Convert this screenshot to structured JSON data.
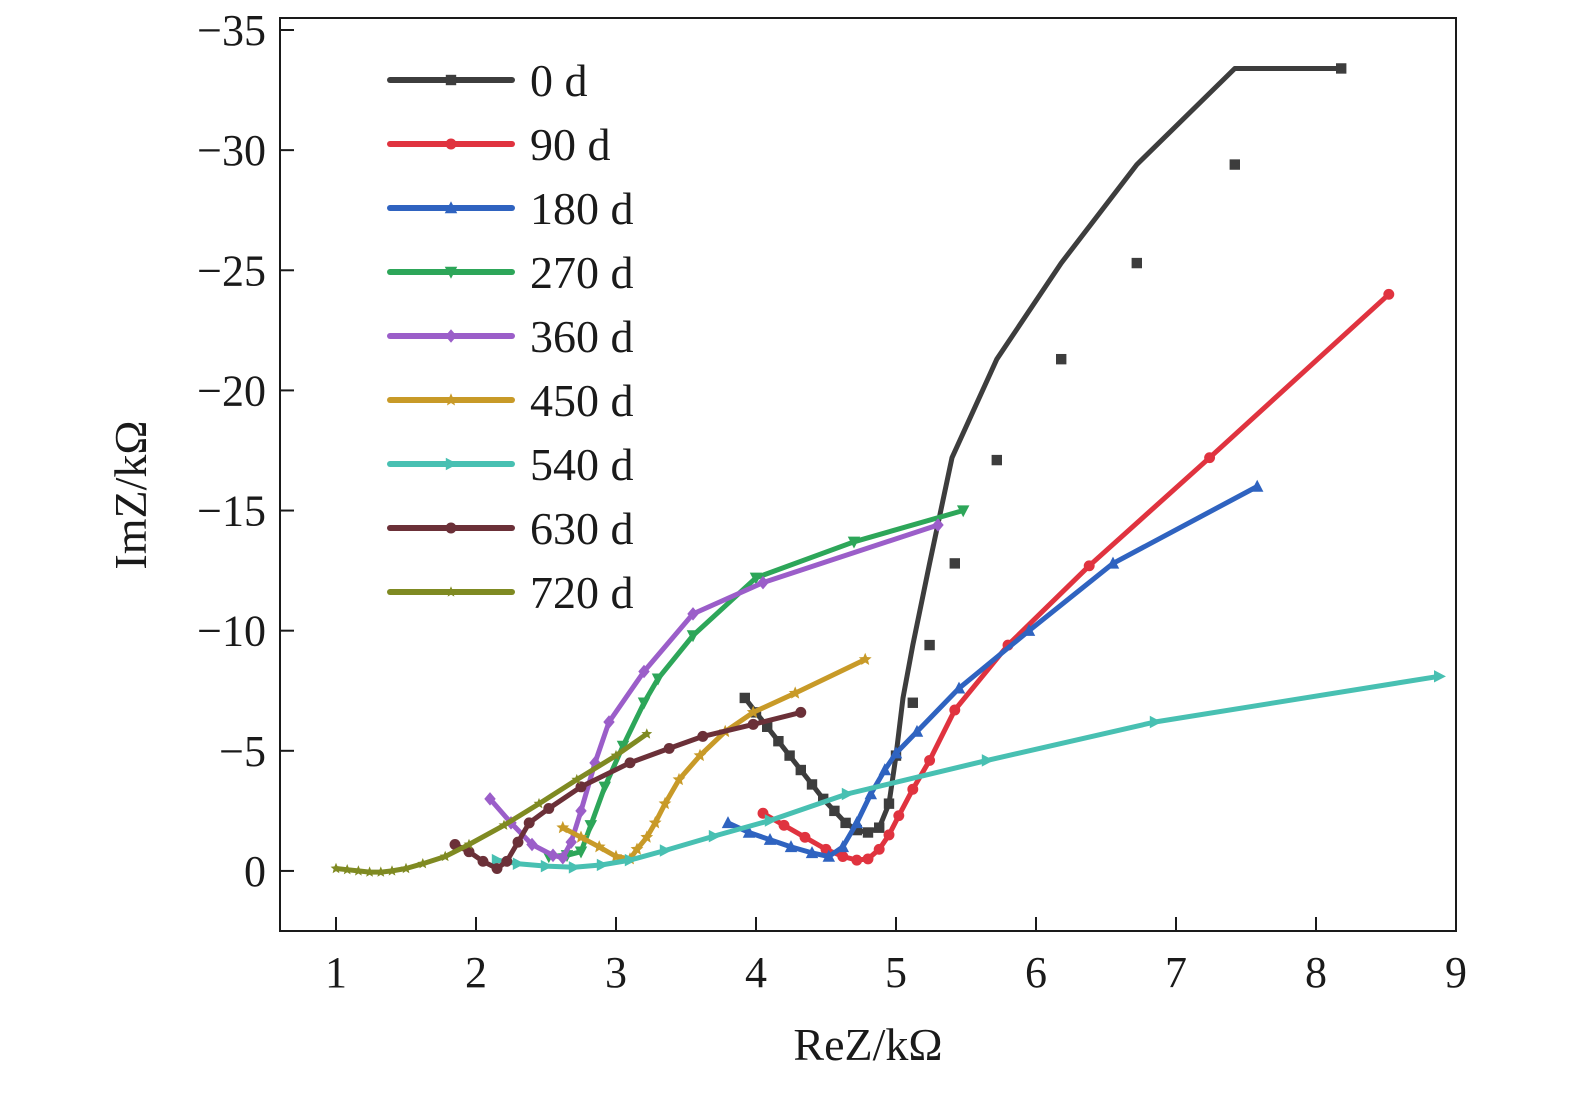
{
  "chart_data": {
    "type": "line",
    "title": "",
    "xlabel": "ReZ/kΩ",
    "ylabel": "ImZ/kΩ",
    "xlim": [
      0.6,
      9
    ],
    "ylim": [
      2.5,
      -35.5
    ],
    "x_ticks": [
      1,
      2,
      3,
      4,
      5,
      6,
      7,
      8,
      9
    ],
    "x_tick_labels": [
      "1",
      "2",
      "3",
      "4",
      "5",
      "6",
      "7",
      "8",
      "9"
    ],
    "y_ticks": [
      0,
      -5,
      -10,
      -15,
      -20,
      -25,
      -30,
      -35
    ],
    "y_tick_labels": [
      "0",
      "−5",
      "−10",
      "−15",
      "−20",
      "−25",
      "−30",
      "−35"
    ],
    "legend_position": "top-left",
    "series": [
      {
        "name": "0 d",
        "color": "#3d3d3d",
        "marker": "square",
        "x": [
          3.92,
          4.0,
          4.08,
          4.16,
          4.24,
          4.32,
          4.4,
          4.48,
          4.56,
          4.64,
          4.72,
          4.8,
          4.88,
          4.95,
          5.0,
          5.05,
          5.12,
          5.24,
          5.4,
          5.72,
          6.18,
          6.72,
          7.42,
          8.18
        ],
        "y": [
          -7.2,
          -6.6,
          -6.0,
          -5.4,
          -4.8,
          -4.2,
          -3.6,
          -3.0,
          -2.5,
          -2.0,
          -1.7,
          -1.6,
          -1.8,
          -2.8,
          -4.8,
          -7.2,
          -9.4,
          -12.8,
          -17.2,
          -21.3,
          -25.3,
          -29.4,
          -33.4,
          -33.4
        ],
        "mx": [
          3.92,
          4.0,
          4.08,
          4.16,
          4.24,
          4.32,
          4.4,
          4.48,
          4.56,
          4.64,
          4.72,
          4.8,
          4.88,
          4.95,
          5.0,
          5.12,
          5.24,
          5.42,
          5.72,
          6.18,
          6.72,
          7.42,
          8.18
        ],
        "my": [
          -7.2,
          -6.6,
          -6.0,
          -5.4,
          -4.8,
          -4.2,
          -3.6,
          -3.0,
          -2.5,
          -2.0,
          -1.7,
          -1.6,
          -1.8,
          -2.8,
          -4.8,
          -7.0,
          -9.4,
          -12.8,
          -17.1,
          -21.3,
          -25.3,
          -29.4,
          -33.4
        ]
      },
      {
        "name": "90 d",
        "color": "#e0333f",
        "marker": "circle",
        "x": [
          4.05,
          4.2,
          4.35,
          4.5,
          4.62,
          4.72,
          4.8,
          4.88,
          4.95,
          5.02,
          5.12,
          5.24,
          5.42,
          5.8,
          6.38,
          7.24,
          8.52
        ],
        "y": [
          -2.4,
          -1.9,
          -1.4,
          -0.9,
          -0.6,
          -0.45,
          -0.5,
          -0.9,
          -1.5,
          -2.3,
          -3.4,
          -4.6,
          -6.7,
          -9.4,
          -12.7,
          -17.2,
          -24.0
        ]
      },
      {
        "name": "180 d",
        "color": "#2f63c0",
        "marker": "triangle-up",
        "x": [
          3.8,
          3.95,
          4.1,
          4.25,
          4.4,
          4.52,
          4.62,
          4.72,
          4.82,
          4.92,
          5.0,
          5.15,
          5.45,
          5.95,
          6.55,
          7.58
        ],
        "y": [
          -2.0,
          -1.6,
          -1.3,
          -1.0,
          -0.75,
          -0.6,
          -1.0,
          -2.0,
          -3.2,
          -4.2,
          -4.9,
          -5.8,
          -7.6,
          -10.0,
          -12.8,
          -16.0
        ]
      },
      {
        "name": "270 d",
        "color": "#2da659",
        "marker": "triangle-down",
        "x": [
          2.52,
          2.65,
          2.75,
          2.82,
          2.92,
          3.05,
          3.2,
          3.3,
          3.55,
          4.0,
          4.7,
          5.48
        ],
        "y": [
          -0.6,
          -0.65,
          -0.8,
          -1.9,
          -3.5,
          -5.2,
          -7.0,
          -8.0,
          -9.8,
          -12.2,
          -13.7,
          -15.0
        ]
      },
      {
        "name": "360 d",
        "color": "#9b5ec9",
        "marker": "diamond",
        "x": [
          2.1,
          2.25,
          2.4,
          2.55,
          2.62,
          2.68,
          2.75,
          2.85,
          2.95,
          3.2,
          3.55,
          4.05,
          5.3
        ],
        "y": [
          -3.0,
          -2.0,
          -1.1,
          -0.65,
          -0.55,
          -1.2,
          -2.5,
          -4.5,
          -6.2,
          -8.3,
          -10.7,
          -12.0,
          -14.4
        ]
      },
      {
        "name": "450 d",
        "color": "#c89a28",
        "marker": "star",
        "x": [
          2.62,
          2.75,
          2.88,
          3.0,
          3.1,
          3.15,
          3.22,
          3.28,
          3.35,
          3.45,
          3.6,
          3.78,
          3.98,
          4.28,
          4.78
        ],
        "y": [
          -1.8,
          -1.4,
          -1.0,
          -0.6,
          -0.5,
          -0.9,
          -1.4,
          -2.0,
          -2.8,
          -3.8,
          -4.8,
          -5.8,
          -6.6,
          -7.4,
          -8.8
        ]
      },
      {
        "name": "540 d",
        "color": "#48c0b2",
        "marker": "triangle-right",
        "x": [
          2.15,
          2.3,
          2.5,
          2.7,
          2.9,
          3.1,
          3.35,
          3.7,
          4.1,
          4.65,
          5.65,
          6.85,
          8.88
        ],
        "y": [
          -0.45,
          -0.3,
          -0.2,
          -0.15,
          -0.25,
          -0.45,
          -0.85,
          -1.45,
          -2.1,
          -3.2,
          -4.6,
          -6.2,
          -8.1
        ]
      },
      {
        "name": "630 d",
        "color": "#6b3038",
        "marker": "hexagon",
        "x": [
          1.85,
          1.95,
          2.05,
          2.15,
          2.22,
          2.3,
          2.38,
          2.52,
          2.75,
          3.1,
          3.38,
          3.62,
          3.98,
          4.32
        ],
        "y": [
          -1.1,
          -0.8,
          -0.4,
          -0.1,
          -0.4,
          -1.2,
          -2.0,
          -2.6,
          -3.5,
          -4.5,
          -5.1,
          -5.6,
          -6.1,
          -6.6
        ]
      },
      {
        "name": "720 d",
        "color": "#7f8a22",
        "marker": "star-small",
        "x": [
          1.0,
          1.08,
          1.16,
          1.24,
          1.32,
          1.4,
          1.5,
          1.62,
          1.78,
          1.95,
          2.2,
          2.45,
          2.72,
          3.0,
          3.22
        ],
        "y": [
          -0.1,
          -0.05,
          0.0,
          0.05,
          0.05,
          0.0,
          -0.1,
          -0.3,
          -0.6,
          -1.1,
          -1.9,
          -2.8,
          -3.8,
          -4.8,
          -5.7
        ]
      }
    ]
  }
}
